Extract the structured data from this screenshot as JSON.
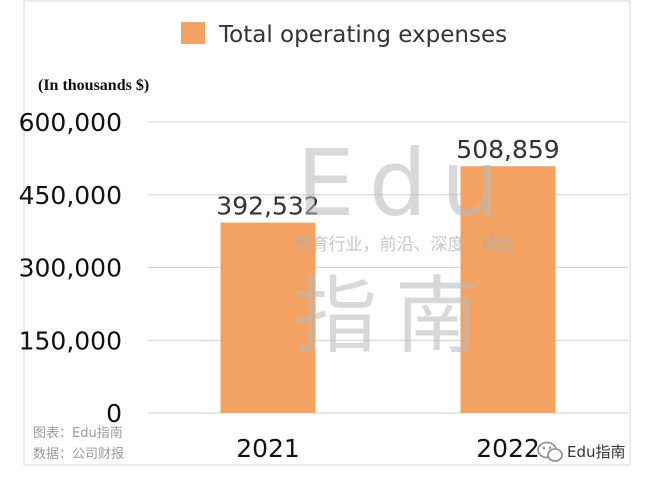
{
  "chart_data": {
    "type": "bar",
    "title": "",
    "unit_label": "(In thousands $)",
    "categories": [
      "2021",
      "2022"
    ],
    "series": [
      {
        "name": "Total operating expenses",
        "values": [
          392532,
          508859
        ]
      }
    ],
    "data_labels": [
      "392,532",
      "508,859"
    ],
    "y_ticks": [
      "0",
      "150,000",
      "300,000",
      "450,000",
      "600,000"
    ],
    "ylim": [
      0,
      600000
    ],
    "y_tick_values": [
      0,
      150000,
      300000,
      450000,
      600000
    ],
    "grid": true,
    "legend_position": "top-center",
    "bar_color": "#F4A262"
  },
  "watermark": {
    "brand": "Edu",
    "brand_cn": "指南",
    "tagline": "教育行业，前沿、深度、独家"
  },
  "source": {
    "line1": "图表：Edu指南",
    "line2": "数据：公司财报"
  },
  "wechat": {
    "icon": "wechat-icon",
    "label": "Edu指南"
  }
}
